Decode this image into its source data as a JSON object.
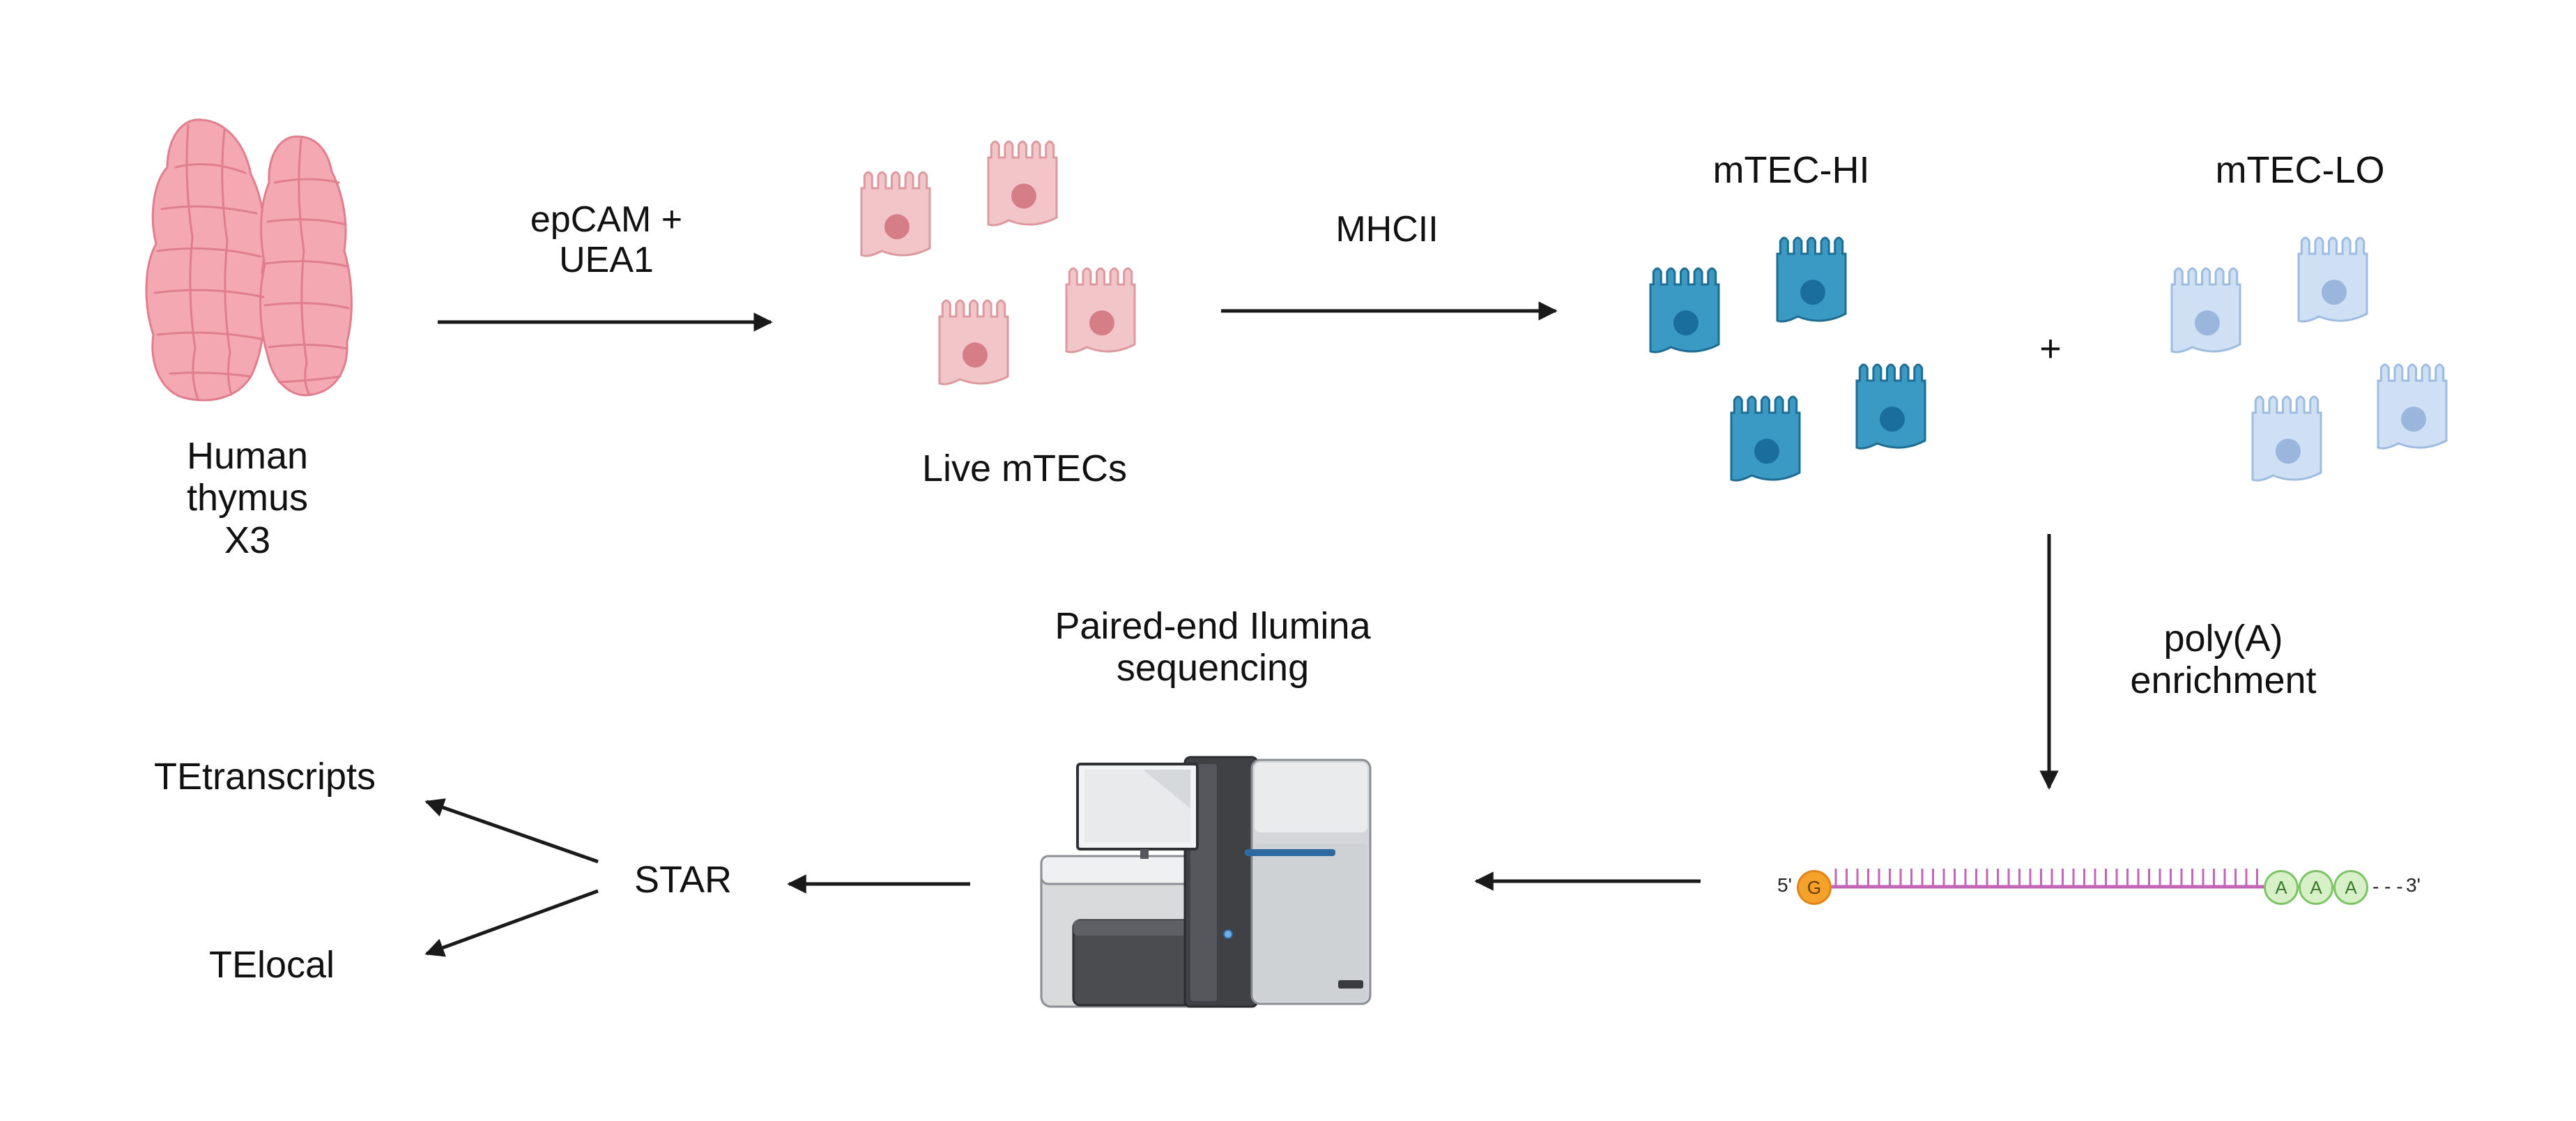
{
  "colors": {
    "thymus_fill": "#f4a8b2",
    "thymus_stroke": "#e07e8d",
    "live_cell_fill": "#f2c6c8",
    "live_cell_stroke": "#dc9a9f",
    "live_cell_nucleus": "#d67e87",
    "mtec_hi_fill": "#3a9ac4",
    "mtec_hi_stroke": "#1f6d92",
    "mtec_hi_nucleus": "#1a6e9e",
    "mtec_lo_fill": "#cfe0f4",
    "mtec_lo_stroke": "#9ebce0",
    "mtec_lo_nucleus": "#9ab6dc",
    "rna_strand": "#c466b8",
    "arrow": "#1a1a1a"
  },
  "icons": {
    "thymus": "human-thymus-icon",
    "cell": "epithelial-cell-icon",
    "sequencer": "illumina-sequencer-icon",
    "rna": "mrna-strand-icon"
  },
  "labels": {
    "thymus": [
      "Human",
      "thymus",
      "X3"
    ],
    "sort1": [
      "epCAM +",
      "UEA1"
    ],
    "live": "Live mTECs",
    "sort2": "MHCII",
    "hi": "mTEC-HI",
    "lo": "mTEC-LO",
    "plus": "+",
    "polya": [
      "poly(A)",
      "enrichment"
    ],
    "sequencing": [
      "Paired-end Ilumina",
      "sequencing"
    ],
    "star": "STAR",
    "tetranscripts": "TEtranscripts",
    "telocal": "TElocal"
  },
  "rna": {
    "five_prime": "5'",
    "cap": "G",
    "tail": [
      "A",
      "A",
      "A"
    ],
    "dashes": "- - -",
    "three_prime": "3'"
  }
}
